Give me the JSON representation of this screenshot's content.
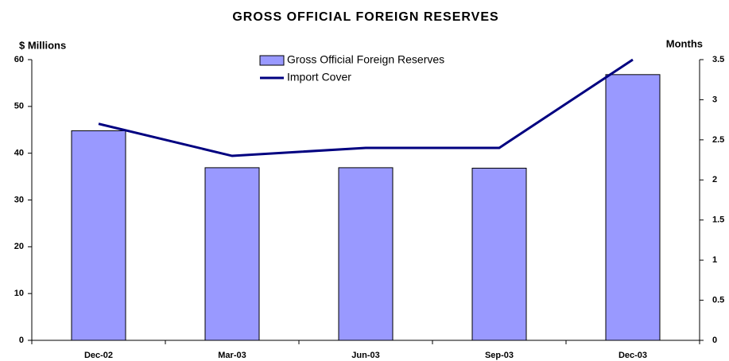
{
  "chart_data": {
    "type": "combo",
    "title": "GROSS OFFICIAL FOREIGN RESERVES",
    "ylabel": "$ Millions",
    "y2label": "Months",
    "categories": [
      "Dec-02",
      "Mar-03",
      "Jun-03",
      "Sep-03",
      "Dec-03"
    ],
    "series": [
      {
        "name": "Gross Official Foreign Reserves",
        "type": "bar",
        "color": "#9999ff",
        "values": [
          44.8,
          36.9,
          36.9,
          36.8,
          56.8
        ]
      },
      {
        "name": "Import Cover",
        "type": "line",
        "axis": "y2",
        "color": "#000080",
        "values": [
          2.7,
          2.3,
          2.4,
          2.4,
          3.5
        ]
      }
    ],
    "ylim": [
      0,
      60
    ],
    "yticks": [
      0,
      10,
      20,
      30,
      40,
      50,
      60
    ],
    "y2lim": [
      0,
      3.5
    ],
    "y2ticks": [
      0,
      0.5,
      1,
      1.5,
      2,
      2.5,
      3,
      3.5
    ],
    "grid": false
  }
}
